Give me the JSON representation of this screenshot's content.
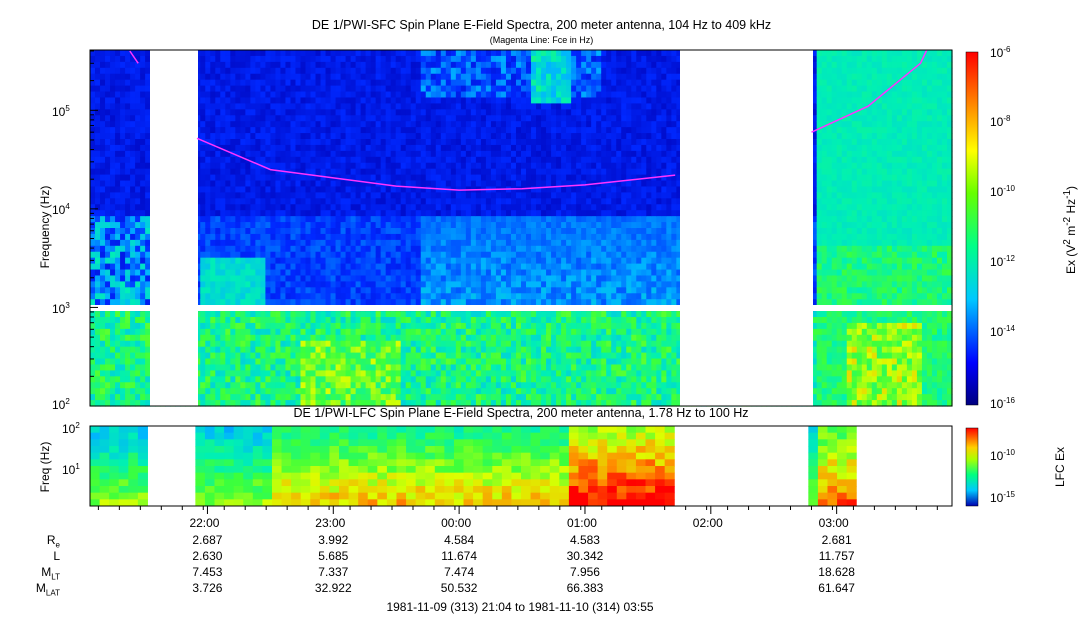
{
  "titles": {
    "sfc": "DE 1/PWI-SFC  Spin Plane E-Field Spectra, 200 meter antenna, 104 Hz to 409 kHz",
    "sfc_sub": "(Magenta Line: Fce in Hz)",
    "lfc": "DE 1/PWI-LFC  Spin Plane E-Field Spectra, 200 meter antenna, 1.78 Hz to 100 Hz"
  },
  "axes": {
    "sfc_ylabel": "Frequency (Hz)",
    "lfc_ylabel": "Freq (Hz)",
    "sfc_cbar_label_html": "Ex (V<sup>2</sup> m<sup>-2</sup> Hz<sup>-1</sup>)",
    "lfc_cbar_label": "LFC Ex",
    "time_ticks": [
      "22:00",
      "23:00",
      "00:00",
      "01:00",
      "02:00",
      "03:00"
    ],
    "date_range": "1981-11-09 (313) 21:04 to 1981-11-10 (314) 03:55"
  },
  "ephemeris": {
    "labels": [
      "R",
      "L",
      "M",
      "M"
    ],
    "label_subs": [
      "e",
      "",
      "LT",
      "LAT"
    ],
    "columns": [
      {
        "time": "22:00",
        "Re": "2.687",
        "L": "2.630",
        "MLT": "7.453",
        "MLAT": "3.726"
      },
      {
        "time": "23:00",
        "Re": "3.992",
        "L": "5.685",
        "MLT": "7.337",
        "MLAT": "32.922"
      },
      {
        "time": "00:00",
        "Re": "4.584",
        "L": "11.674",
        "MLT": "7.474",
        "MLAT": "50.532"
      },
      {
        "time": "01:00",
        "Re": "4.583",
        "L": "30.342",
        "MLT": "7.956",
        "MLAT": "66.383"
      },
      {
        "time": "03:00",
        "Re": "2.681",
        "L": "11.757",
        "MLT": "18.628",
        "MLAT": "61.647"
      }
    ]
  },
  "chart_data": [
    {
      "type": "heatmap",
      "title": "DE 1/PWI-SFC  Spin Plane E-Field Spectra, 200 meter antenna, 104 Hz to 409 kHz",
      "xlabel": "",
      "ylabel": "Frequency (Hz)",
      "y_scale": "log",
      "ylim": [
        100,
        409000
      ],
      "y_ticks": [
        "10^2",
        "10^3",
        "10^4",
        "10^5"
      ],
      "xlim": [
        "1981-11-09 21:04",
        "1981-11-10 03:55"
      ],
      "x_ticks": [
        "22:00",
        "23:00",
        "00:00",
        "01:00",
        "02:00",
        "03:00"
      ],
      "colorbar": {
        "label": "Ex (V^2 m^-2 Hz^-1)",
        "scale": "log",
        "range": [
          1e-16,
          1e-06
        ],
        "ticks": [
          "10^-16",
          "10^-14",
          "10^-12",
          "10^-10",
          "10^-8",
          "10^-6"
        ],
        "colormap": "rainbow (blue to red)"
      },
      "data_gaps": [
        [
          "21:32",
          "21:55"
        ],
        [
          "01:43",
          "02:48"
        ]
      ],
      "fce_line": {
        "name": "Fce in Hz",
        "color": "#ff33ff",
        "points": [
          {
            "t": "21:23",
            "f": 400000
          },
          {
            "t": "21:27",
            "f": 300000
          },
          {
            "t": "21:55",
            "f": 52000
          },
          {
            "t": "22:30",
            "f": 25000
          },
          {
            "t": "23:30",
            "f": 17000
          },
          {
            "t": "00:00",
            "f": 15500
          },
          {
            "t": "00:30",
            "f": 16000
          },
          {
            "t": "01:00",
            "f": 17500
          },
          {
            "t": "01:43",
            "f": 22000
          },
          {
            "t": "02:48",
            "f": 60000
          },
          {
            "t": "03:15",
            "f": 110000
          },
          {
            "t": "03:40",
            "f": 300000
          },
          {
            "t": "03:43",
            "f": 409000
          }
        ]
      }
    },
    {
      "type": "heatmap",
      "title": "DE 1/PWI-LFC  Spin Plane E-Field Spectra, 200 meter antenna, 1.78 Hz to 100 Hz",
      "ylabel": "Freq (Hz)",
      "y_scale": "log",
      "ylim": [
        1.78,
        100
      ],
      "y_ticks": [
        "10^1",
        "10^2"
      ],
      "xlim": [
        "1981-11-09 21:04",
        "1981-11-10 03:55"
      ],
      "colorbar": {
        "label": "LFC Ex",
        "scale": "log",
        "ticks": [
          "10^-15",
          "10^-10"
        ]
      },
      "data_gaps": [
        [
          "21:32",
          "21:55"
        ],
        [
          "01:43",
          "02:48"
        ],
        [
          "03:08",
          "03:55"
        ]
      ]
    }
  ],
  "colors": {
    "fce_line": "#ff33ff",
    "background_fill": "#0000b8"
  }
}
